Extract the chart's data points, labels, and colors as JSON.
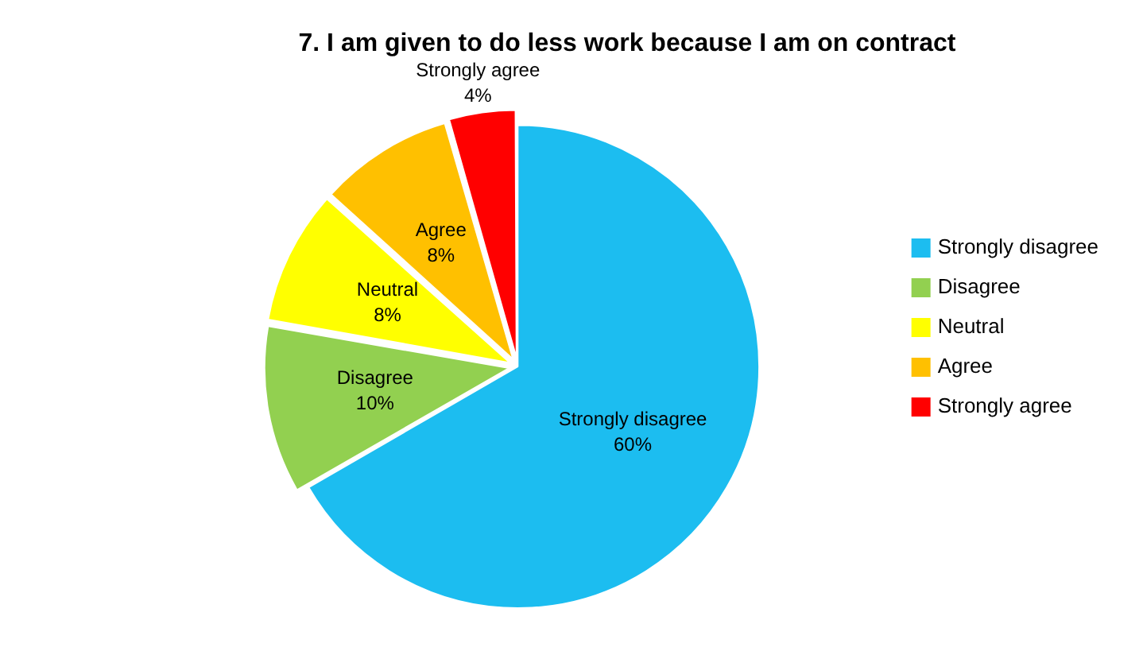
{
  "chart_data": {
    "type": "pie",
    "title": "7. I am given to do less work because I am on contract",
    "categories": [
      "Strongly disagree",
      "Disagree",
      "Neutral",
      "Agree",
      "Strongly agree"
    ],
    "values": [
      60,
      10,
      8,
      8,
      4
    ],
    "value_labels": [
      "60%",
      "10%",
      "8%",
      "8%",
      "4%"
    ],
    "colors": [
      "#1cbdf0",
      "#92d050",
      "#ffff00",
      "#ffc000",
      "#ff0000"
    ],
    "legend": "right"
  }
}
